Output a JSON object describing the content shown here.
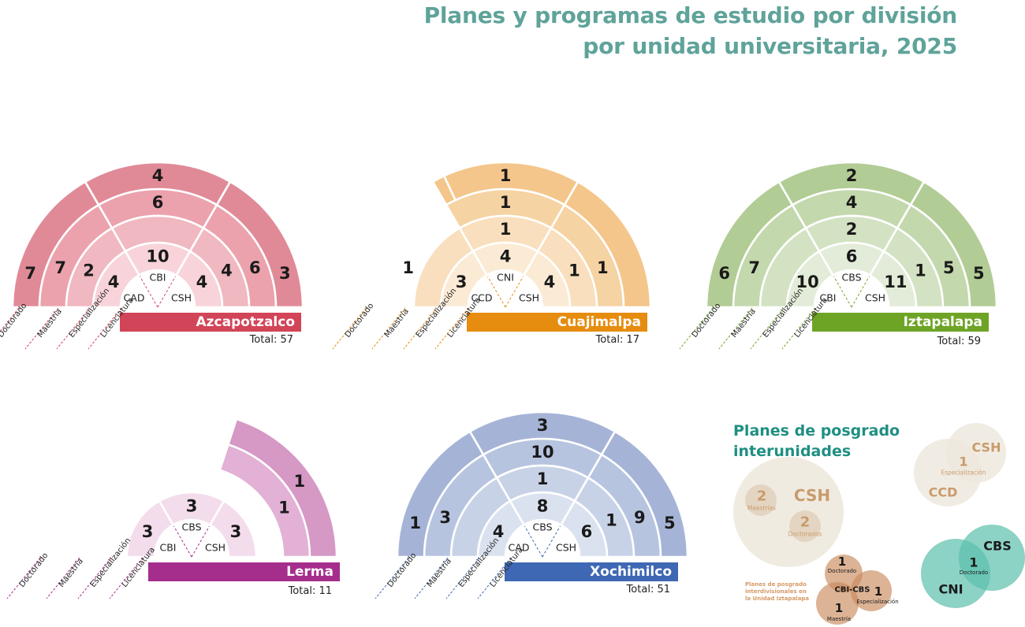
{
  "title": {
    "line1": "Planes y programas de estudio por división",
    "line2": "por unidad universitaria, 2025"
  },
  "levels": [
    "Doctorado",
    "Maestría",
    "Especialización",
    "Licenciatura"
  ],
  "colors": {
    "azcapotzalco": [
      "#e08a98",
      "#eba2ad",
      "#f0b8c0",
      "#f8d4da",
      "#d24458"
    ],
    "cuajimalpa": [
      "#f4c68b",
      "#f6d3a3",
      "#f9dfbd",
      "#fbebd5",
      "#e68c0e"
    ],
    "iztapalapa": [
      "#b2cc95",
      "#c4d8ad",
      "#d3e2c2",
      "#e3ecd8",
      "#6ea425"
    ],
    "lerma": [
      "#d698c5",
      "#e2b1d5",
      "#ebc8e1",
      "#f3dcec",
      "#a52e8d"
    ],
    "xochimilco": [
      "#a5b4d6",
      "#b7c4e0",
      "#c8d2e7",
      "#dbe2ef",
      "#3e68b4"
    ]
  },
  "units": [
    {
      "key": "azcapotzalco",
      "name": "Azcapotzalco",
      "total": "Total: 57",
      "divisions": [
        "CAD",
        "CBI",
        "CSH"
      ],
      "values": [
        [
          "7",
          "7",
          "2",
          "4"
        ],
        [
          "4",
          "6",
          "",
          "10"
        ],
        [
          "3",
          "6",
          "4",
          "4"
        ]
      ]
    },
    {
      "key": "cuajimalpa",
      "name": "Cuajimalpa",
      "total": "Total: 17",
      "divisions": [
        "CCD",
        "CNI",
        "CSH"
      ],
      "values": [
        [
          "",
          "1",
          "",
          "3"
        ],
        [
          "1",
          "1",
          "1",
          "4"
        ],
        [
          "",
          "1",
          "1",
          "4"
        ]
      ]
    },
    {
      "key": "iztapalapa",
      "name": "Iztapalapa",
      "total": "Total: 59",
      "divisions": [
        "CBI",
        "CBS",
        "CSH"
      ],
      "values": [
        [
          "6",
          "7",
          "",
          "10"
        ],
        [
          "2",
          "4",
          "2",
          "6"
        ],
        [
          "5",
          "5",
          "1",
          "11"
        ]
      ]
    },
    {
      "key": "lerma",
      "name": "Lerma",
      "total": "Total: 11",
      "divisions": [
        "CBI",
        "CBS",
        "CSH"
      ],
      "values": [
        [
          "",
          "",
          "",
          "3"
        ],
        [
          "",
          "",
          "",
          "3"
        ],
        [
          "1",
          "1",
          "",
          "3"
        ]
      ]
    },
    {
      "key": "xochimilco",
      "name": "Xochimilco",
      "total": "Total: 51",
      "divisions": [
        "CAD",
        "CBS",
        "CSH"
      ],
      "values": [
        [
          "1",
          "3",
          "",
          "4"
        ],
        [
          "3",
          "10",
          "1",
          "8"
        ],
        [
          "5",
          "9",
          "1",
          "6"
        ]
      ]
    }
  ],
  "interunidades": {
    "title_line1": "Planes de posgrado",
    "title_line2": "interunidades",
    "csh_single": {
      "unit": "CSH",
      "maestrias_value": "2",
      "maestrias_label": "Maestrías",
      "doctorados_value": "2",
      "doctorados_label": "Doctorados"
    },
    "ccd_csh": {
      "unit_a": "CSH",
      "unit_b": "CCD",
      "value": "1",
      "label": "Especialización"
    },
    "cbs_cni": {
      "unit_a": "CBS",
      "unit_b": "CNI",
      "value": "1",
      "label": "Doctorado"
    },
    "izt_note": "Planes de posgrado interdivisionales en la Unidad Iztapalapa",
    "cbi_cbs": {
      "center": "CBI-CBS",
      "doctorado_value": "1",
      "doctorado_label": "Doctorado",
      "esp_value": "1",
      "esp_label": "Especialización",
      "maestria_value": "1",
      "maestria_label": "Maestría"
    }
  }
}
